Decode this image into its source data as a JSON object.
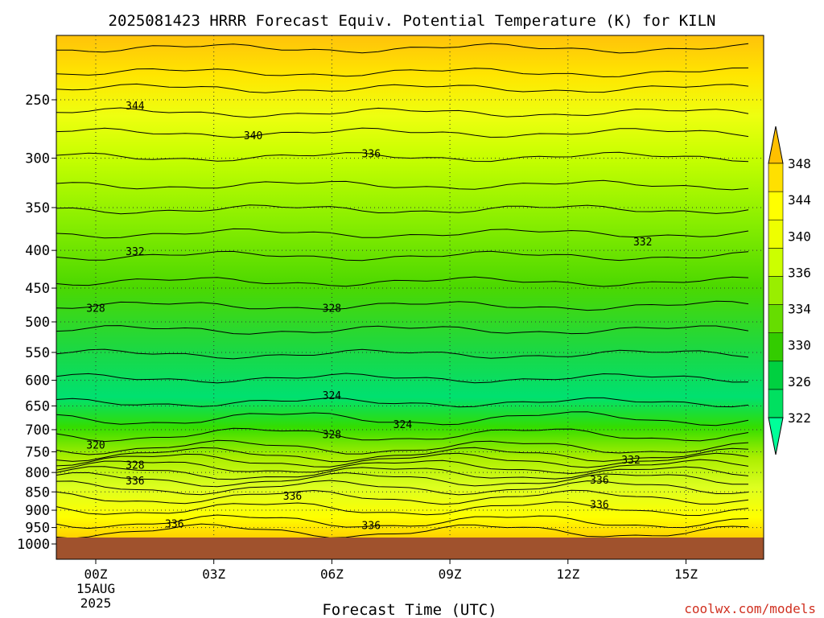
{
  "chart_data": {
    "type": "contour",
    "title": "2025081423 HRRR Forecast Equiv. Potential Temperature (K) for KILN",
    "xlabel": "Forecast Time (UTC)",
    "ylabel": "",
    "credit": "coolwx.com/models",
    "x_tick_labels": [
      "00Z",
      "03Z",
      "06Z",
      "09Z",
      "12Z",
      "15Z"
    ],
    "x_tick_hours": [
      0,
      3,
      6,
      9,
      12,
      15
    ],
    "x_date_line1": "15AUG",
    "x_date_line2": "2025",
    "xlim_hours": [
      -1,
      17
    ],
    "y_scale": "log-pressure",
    "y_ticks_hpa": [
      250,
      300,
      350,
      400,
      450,
      500,
      550,
      600,
      650,
      700,
      750,
      800,
      850,
      900,
      950,
      1000
    ],
    "ylim_hpa": [
      200,
      1040
    ],
    "ground_below_hpa": 980,
    "grid": "dotted",
    "colorbar": {
      "labels": [
        "322",
        "326",
        "330",
        "334",
        "336",
        "340",
        "344",
        "348"
      ],
      "colors": [
        "#00ff99",
        "#00e060",
        "#00d040",
        "#33cc00",
        "#66dd00",
        "#99ee00",
        "#ccff00",
        "#eeff00",
        "#ffff00",
        "#ffe000",
        "#ffc000"
      ]
    },
    "isotherm_labels": [
      {
        "text": "344",
        "hour": 1.0,
        "hpa": 255
      },
      {
        "text": "340",
        "hour": 4.0,
        "hpa": 280
      },
      {
        "text": "336",
        "hour": 7.0,
        "hpa": 296
      },
      {
        "text": "332",
        "hour": 1.0,
        "hpa": 402
      },
      {
        "text": "332",
        "hour": 13.9,
        "hpa": 390
      },
      {
        "text": "328",
        "hour": 0.0,
        "hpa": 480
      },
      {
        "text": "328",
        "hour": 6.0,
        "hpa": 480
      },
      {
        "text": "324",
        "hour": 6.0,
        "hpa": 630
      },
      {
        "text": "324",
        "hour": 7.8,
        "hpa": 690
      },
      {
        "text": "328",
        "hour": 6.0,
        "hpa": 712
      },
      {
        "text": "320",
        "hour": 0.0,
        "hpa": 735
      },
      {
        "text": "328",
        "hour": 1.0,
        "hpa": 783
      },
      {
        "text": "332",
        "hour": 13.6,
        "hpa": 770
      },
      {
        "text": "336",
        "hour": 1.0,
        "hpa": 822
      },
      {
        "text": "336",
        "hour": 5.0,
        "hpa": 862
      },
      {
        "text": "336",
        "hour": 12.8,
        "hpa": 820
      },
      {
        "text": "336",
        "hour": 12.8,
        "hpa": 885
      },
      {
        "text": "336",
        "hour": 2.0,
        "hpa": 940
      },
      {
        "text": "336",
        "hour": 7.0,
        "hpa": 945
      }
    ]
  }
}
